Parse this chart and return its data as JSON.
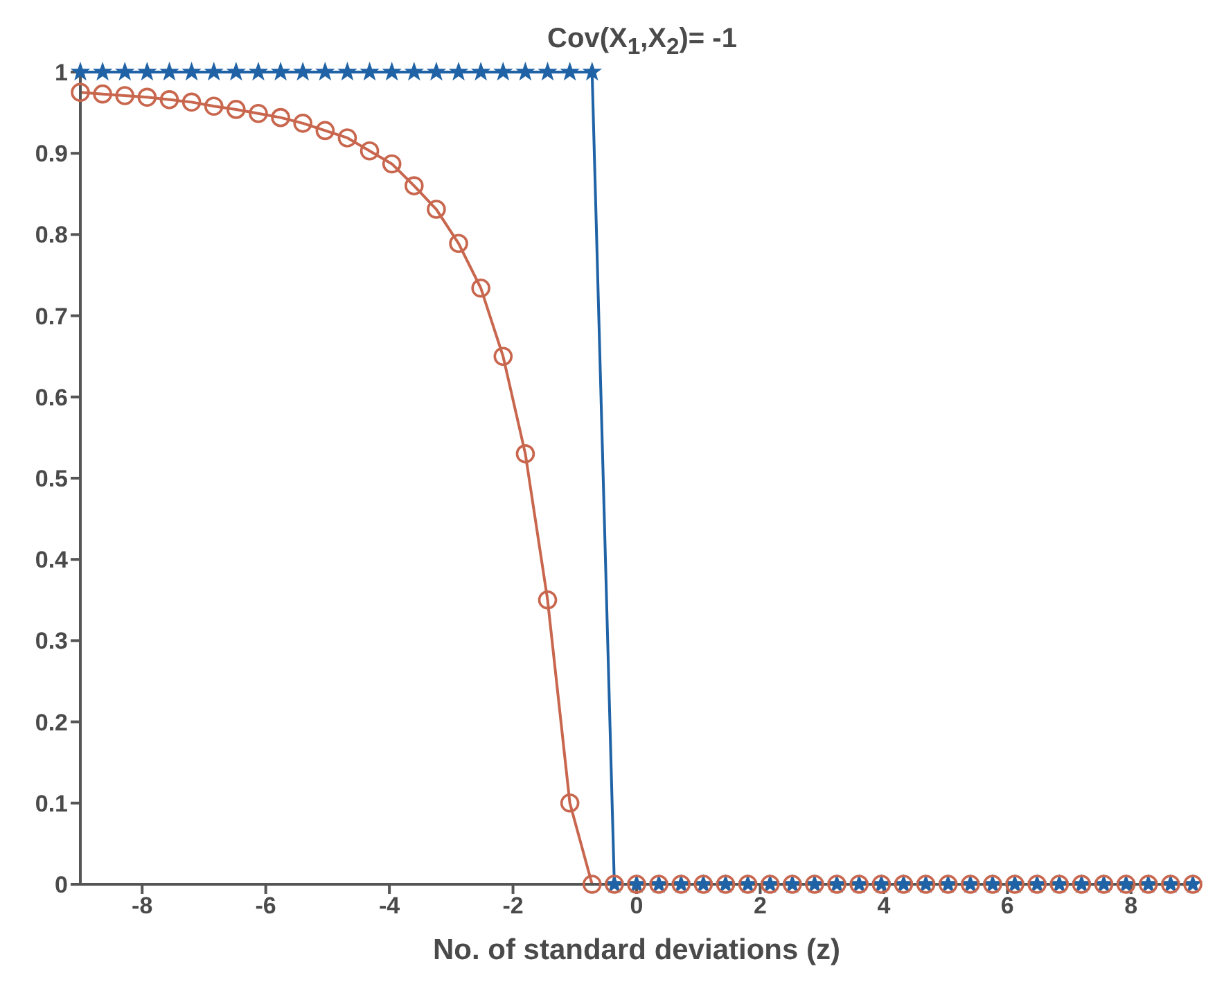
{
  "chart_data": {
    "type": "line",
    "title": "Cov(X$_{1}$,X$_{2}$)= -1",
    "xlabel": "No. of standard deviations (z)",
    "x": [
      -9,
      -8.64,
      -8.28,
      -7.92,
      -7.56,
      -7.2,
      -6.84,
      -6.48,
      -6.12,
      -5.76,
      -5.4,
      -5.04,
      -4.68,
      -4.32,
      -3.96,
      -3.6,
      -3.24,
      -2.88,
      -2.52,
      -2.16,
      -1.8,
      -1.44,
      -1.08,
      -0.72,
      -0.36,
      0,
      0.36,
      0.72,
      1.08,
      1.44,
      1.8,
      2.16,
      2.52,
      2.88,
      3.24,
      3.6,
      3.96,
      4.32,
      4.68,
      5.04,
      5.4,
      5.76,
      6.12,
      6.48,
      6.84,
      7.2,
      7.56,
      7.92,
      8.28,
      8.64,
      9
    ],
    "series": [
      {
        "color": "#1f63a6",
        "marker": "star",
        "values": [
          1,
          1,
          1,
          1,
          1,
          1,
          1,
          1,
          1,
          1,
          1,
          1,
          1,
          1,
          1,
          1,
          1,
          1,
          1,
          1,
          1,
          1,
          1,
          1,
          0,
          0,
          0,
          0,
          0,
          0,
          0,
          0,
          0,
          0,
          0,
          0,
          0,
          0,
          0,
          0,
          0,
          0,
          0,
          0,
          0,
          0,
          0,
          0,
          0,
          0,
          0
        ]
      },
      {
        "color": "#c8664e",
        "marker": "circle",
        "values": [
          0.975,
          0.973,
          0.971,
          0.969,
          0.966,
          0.963,
          0.958,
          0.954,
          0.949,
          0.944,
          0.937,
          0.928,
          0.919,
          0.903,
          0.887,
          0.86,
          0.831,
          0.789,
          0.734,
          0.65,
          0.53,
          0.35,
          0.1,
          0,
          0,
          0,
          0,
          0,
          0,
          0,
          0,
          0,
          0,
          0,
          0,
          0,
          0,
          0,
          0,
          0,
          0,
          0,
          0,
          0,
          0,
          0,
          0,
          0,
          0,
          0,
          0
        ]
      }
    ],
    "xlim": [
      -9,
      9
    ],
    "xticks": [
      -8,
      -6,
      -4,
      -2,
      0,
      2,
      4,
      6,
      8
    ],
    "ylim": [
      0,
      1
    ],
    "yticks": [
      0,
      0.1,
      0.2,
      0.3,
      0.4,
      0.5,
      0.6,
      0.7,
      0.8,
      0.9,
      1
    ],
    "grid": false,
    "legend": false,
    "line_style": "solid"
  }
}
